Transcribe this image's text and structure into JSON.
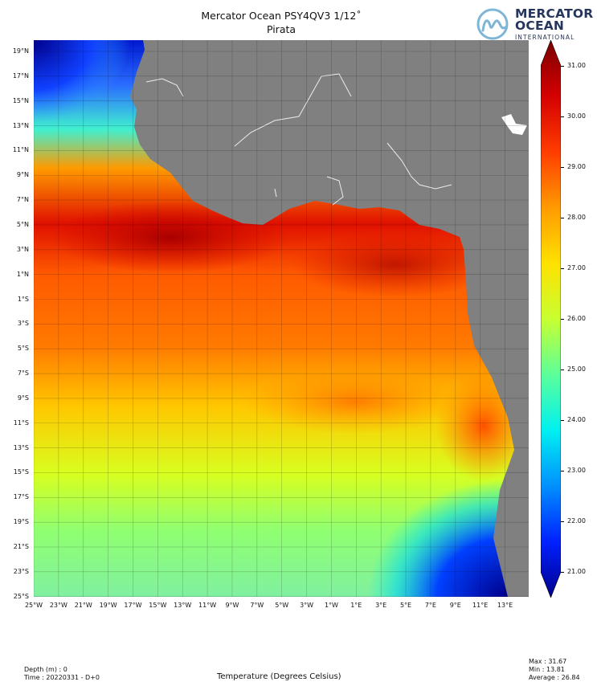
{
  "header": {
    "title": "Mercator Ocean PSY4QV3 1/12$^\\circ$",
    "title_display": "Mercator Ocean PSY4QV3 1/12˚",
    "subtitle": "Pirata"
  },
  "logo": {
    "line1": "MERCATOR",
    "line2": "OCEAN",
    "line3": "INTERNATIONAL",
    "color": "#26365c",
    "mark_color": "#7fb5d5"
  },
  "map": {
    "land_color": "#808080",
    "lat_labels": [
      "19°N",
      "17°N",
      "15°N",
      "13°N",
      "11°N",
      "9°N",
      "7°N",
      "5°N",
      "3°N",
      "1°N",
      "1°S",
      "3°S",
      "5°S",
      "7°S",
      "9°S",
      "11°S",
      "13°S",
      "15°S",
      "17°S",
      "19°S",
      "21°S",
      "23°S",
      "25°S"
    ],
    "lon_labels": [
      "25°W",
      "23°W",
      "21°W",
      "19°W",
      "17°W",
      "15°W",
      "13°W",
      "11°W",
      "9°W",
      "7°W",
      "5°W",
      "3°W",
      "1°W",
      "1°E",
      "3°E",
      "5°E",
      "7°E",
      "9°E",
      "11°E",
      "13°E"
    ]
  },
  "colorbar": {
    "ticks": [
      "31.00",
      "30.00",
      "29.00",
      "28.00",
      "27.00",
      "26.00",
      "25.00",
      "24.00",
      "23.00",
      "22.00",
      "21.00"
    ],
    "colors": [
      "#7a0000",
      "#d40000",
      "#ff3c00",
      "#ff9a00",
      "#ffe100",
      "#c8ff30",
      "#5cff9a",
      "#00f0f0",
      "#0090ff",
      "#0020ff",
      "#00008c"
    ]
  },
  "footer": {
    "depth": "Depth (m) : 0",
    "time": "Time : 20220331 - D+0",
    "variable": "Temperature (Degrees Celsius)",
    "max": "Max : 31.67",
    "min": "Min : 13.81",
    "average": "Average : 26.84"
  }
}
